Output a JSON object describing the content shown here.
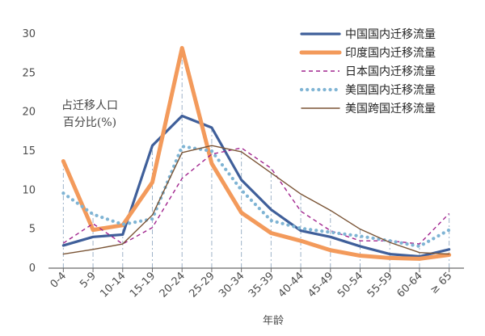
{
  "chart_data": {
    "type": "line",
    "title": "",
    "xlabel": "年龄",
    "ylabel_lines": [
      "占迁移人口",
      "百分比(%)"
    ],
    "ylim": [
      0,
      30
    ],
    "yticks": [
      0,
      5,
      10,
      15,
      20,
      25,
      30
    ],
    "categories": [
      "0-4",
      "5-9",
      "10-14",
      "15-19",
      "20-24",
      "25-29",
      "30-34",
      "35-39",
      "40-44",
      "45-49",
      "50-54",
      "55-59",
      "60-64",
      "≥ 65"
    ],
    "grid": false,
    "legend_position": "top-right",
    "series": [
      {
        "name": "中国国内迁移流量",
        "color": "#3f5f9a",
        "values": [
          2.9,
          4.0,
          4.3,
          15.7,
          19.5,
          18.0,
          11.3,
          7.5,
          4.8,
          4.0,
          2.8,
          1.8,
          1.5,
          2.4
        ]
      },
      {
        "name": "印度国内迁移流量",
        "color": "#f39a5b",
        "values": [
          13.7,
          4.9,
          5.5,
          11.0,
          28.2,
          13.4,
          7.1,
          4.5,
          3.5,
          2.3,
          1.6,
          1.3,
          1.2,
          1.7
        ]
      },
      {
        "name": "日本国内迁移流量",
        "color": "#a1248e",
        "values": [
          3.2,
          5.7,
          3.1,
          5.2,
          11.5,
          14.6,
          15.4,
          12.8,
          7.3,
          4.8,
          3.5,
          3.5,
          3.1,
          7.0
        ]
      },
      {
        "name": "美国国内迁移流量",
        "color": "#7fb4d4",
        "values": [
          9.6,
          6.9,
          5.6,
          6.3,
          15.6,
          15.0,
          10.0,
          6.1,
          5.1,
          4.6,
          4.1,
          3.5,
          2.8,
          4.9
        ]
      },
      {
        "name": "美国跨国迁移流量",
        "color": "#7a5435",
        "values": [
          1.8,
          2.4,
          3.1,
          6.8,
          14.8,
          15.7,
          14.9,
          12.2,
          9.5,
          7.4,
          5.0,
          3.3,
          2.0,
          1.8
        ]
      }
    ]
  }
}
